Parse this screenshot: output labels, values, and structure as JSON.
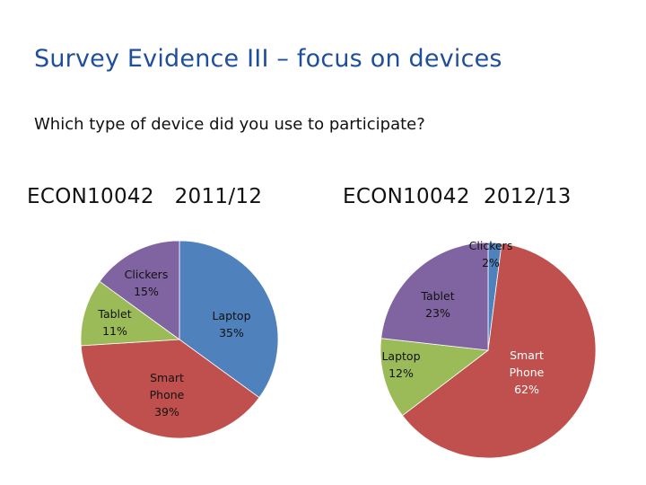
{
  "slide": {
    "title": "Survey Evidence III – focus on devices",
    "question": "Which type of device did you use to participate?"
  },
  "chart_data": [
    {
      "type": "pie",
      "title": "ECON10042   2011/12",
      "slices": [
        {
          "label": "Laptop",
          "value": 35,
          "pct": "35%",
          "color": "#4f81bd"
        },
        {
          "label": "Smart Phone",
          "value": 39,
          "pct": "39%",
          "color": "#c0504d"
        },
        {
          "label": "Tablet",
          "value": 11,
          "pct": "11%",
          "color": "#9bbb59"
        },
        {
          "label": "Clickers",
          "value": 15,
          "pct": "15%",
          "color": "#8064a2"
        }
      ]
    },
    {
      "type": "pie",
      "title": "ECON10042  2012/13",
      "slices": [
        {
          "label": "Clickers",
          "value": 2,
          "pct": "2%",
          "color": "#4f81bd"
        },
        {
          "label": "Smart Phone",
          "value": 62,
          "pct": "62%",
          "color": "#c0504d"
        },
        {
          "label": "Laptop",
          "value": 12,
          "pct": "12%",
          "color": "#9bbb59"
        },
        {
          "label": "Tablet",
          "value": 23,
          "pct": "23%",
          "color": "#8064a2"
        }
      ]
    }
  ]
}
